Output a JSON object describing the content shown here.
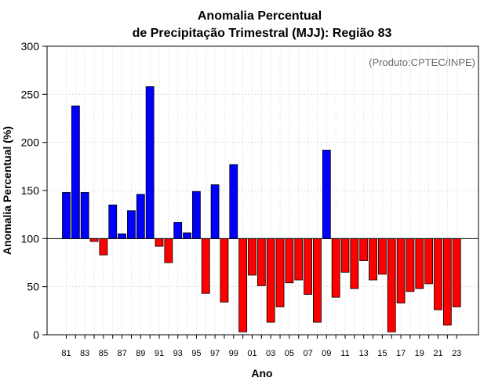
{
  "chart_data": {
    "type": "bar",
    "title_line1": "Anomalia Percentual",
    "title_line2": "de Precipitação Trimestral (MJJ): Região 83",
    "xlabel": "Ano",
    "ylabel": "Anomalia Percentual (%)",
    "credit": "(Produto:CPTEC/INPE)",
    "ylim": [
      0,
      300
    ],
    "yticks": [
      0,
      50,
      100,
      150,
      200,
      250,
      300
    ],
    "baseline": 100,
    "grid": true,
    "categories": [
      "81",
      "82",
      "83",
      "84",
      "85",
      "86",
      "87",
      "88",
      "89",
      "90",
      "91",
      "92",
      "93",
      "94",
      "95",
      "96",
      "97",
      "98",
      "99",
      "00",
      "01",
      "02",
      "03",
      "04",
      "05",
      "06",
      "07",
      "08",
      "09",
      "10",
      "11",
      "12",
      "13",
      "14",
      "15",
      "16",
      "17",
      "18",
      "19",
      "20",
      "21",
      "22",
      "23"
    ],
    "xtick_labels": [
      "81",
      "83",
      "85",
      "87",
      "89",
      "91",
      "93",
      "95",
      "97",
      "99",
      "01",
      "03",
      "05",
      "07",
      "09",
      "11",
      "13",
      "15",
      "17",
      "19",
      "21",
      "23"
    ],
    "values": [
      148,
      238,
      148,
      97,
      83,
      135,
      105,
      129,
      146,
      258,
      92,
      75,
      117,
      106,
      149,
      43,
      156,
      34,
      177,
      3,
      62,
      51,
      13,
      29,
      54,
      57,
      42,
      13,
      192,
      39,
      65,
      48,
      77,
      57,
      63,
      3,
      33,
      45,
      48,
      53,
      26,
      10,
      29
    ],
    "above_color": "#0000ff",
    "below_color": "#ff0000"
  }
}
